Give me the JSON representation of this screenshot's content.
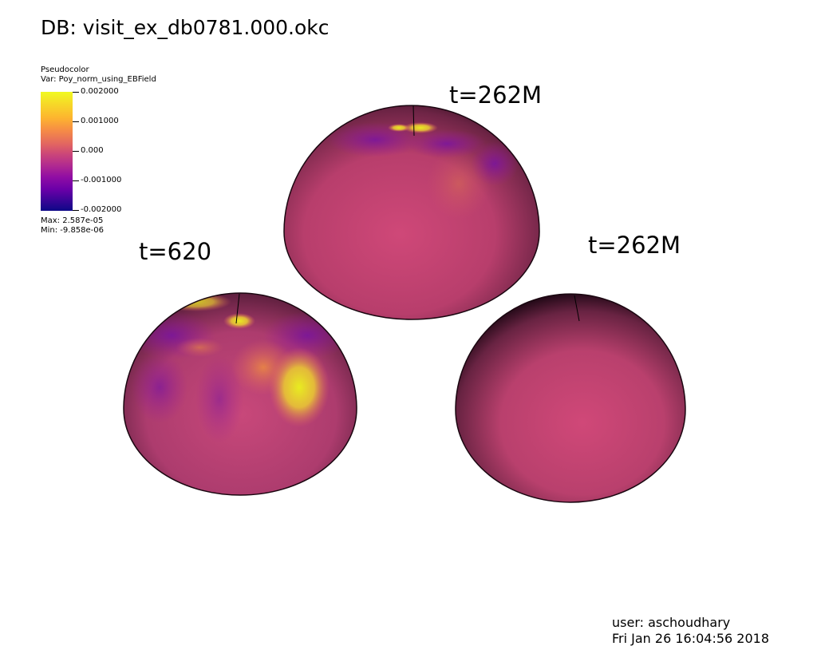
{
  "header": {
    "database_label": "DB: visit_ex_db0781.000.okc"
  },
  "legend": {
    "plot_type": "Pseudocolor",
    "variable": "Var: Poy_norm_using_EBField",
    "ticks": [
      "0.002000",
      "0.001000",
      "0.000",
      "-0.001000",
      "-0.002000"
    ],
    "max": "Max:  2.587e-05",
    "min": "Min: -9.858e-06",
    "colormap": [
      "#0d0887",
      "#6a00a8",
      "#b12a90",
      "#cc4778",
      "#e16462",
      "#fca636",
      "#f0f921"
    ]
  },
  "views": [
    {
      "id": "top",
      "label": "t=262M"
    },
    {
      "id": "left",
      "label": "t=620"
    },
    {
      "id": "right",
      "label": "t=262M"
    }
  ],
  "footer": {
    "user": "user: aschoudhary",
    "timestamp": "Fri Jan 26 16:04:56 2018"
  }
}
